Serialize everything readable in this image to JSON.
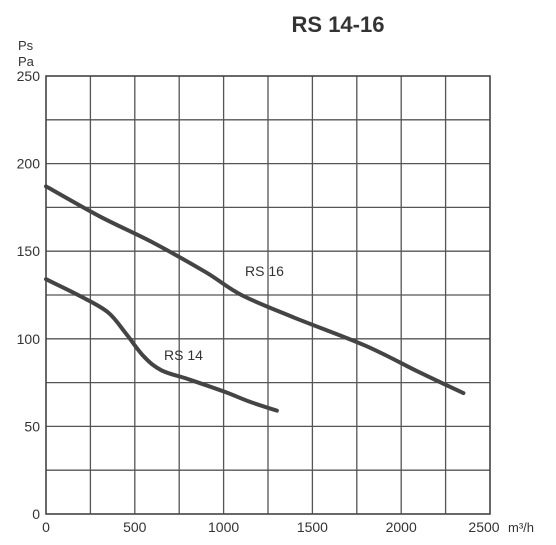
{
  "chart_data": {
    "type": "line",
    "title": "RS 14-16",
    "ylabel_lines": [
      "Ps",
      "Pa"
    ],
    "xlabel_unit": "m³/h",
    "xlim": [
      0,
      2500
    ],
    "ylim": [
      0,
      250
    ],
    "x_ticks": [
      0,
      500,
      1000,
      1500,
      2000,
      2500
    ],
    "y_ticks": [
      0,
      50,
      100,
      150,
      200,
      250
    ],
    "x_tick_labels": [
      "0",
      "500",
      "1000",
      "1500",
      "2000",
      "2500"
    ],
    "y_tick_labels": [
      "0",
      "50",
      "100",
      "150",
      "200",
      "250"
    ],
    "grid": true,
    "grid_x_step": 250,
    "grid_y_step": 25,
    "series": [
      {
        "name": "RS 16",
        "x": [
          0,
          300,
          600,
          900,
          1100,
          1400,
          1800,
          2100,
          2350
        ],
        "y": [
          187,
          170,
          155,
          138,
          125,
          112,
          96,
          81,
          69
        ]
      },
      {
        "name": "RS 14",
        "x": [
          0,
          200,
          350,
          450,
          550,
          650,
          800,
          1000,
          1150,
          1300
        ],
        "y": [
          134,
          124,
          115,
          103,
          90,
          82,
          77,
          70,
          64,
          59
        ]
      }
    ]
  }
}
